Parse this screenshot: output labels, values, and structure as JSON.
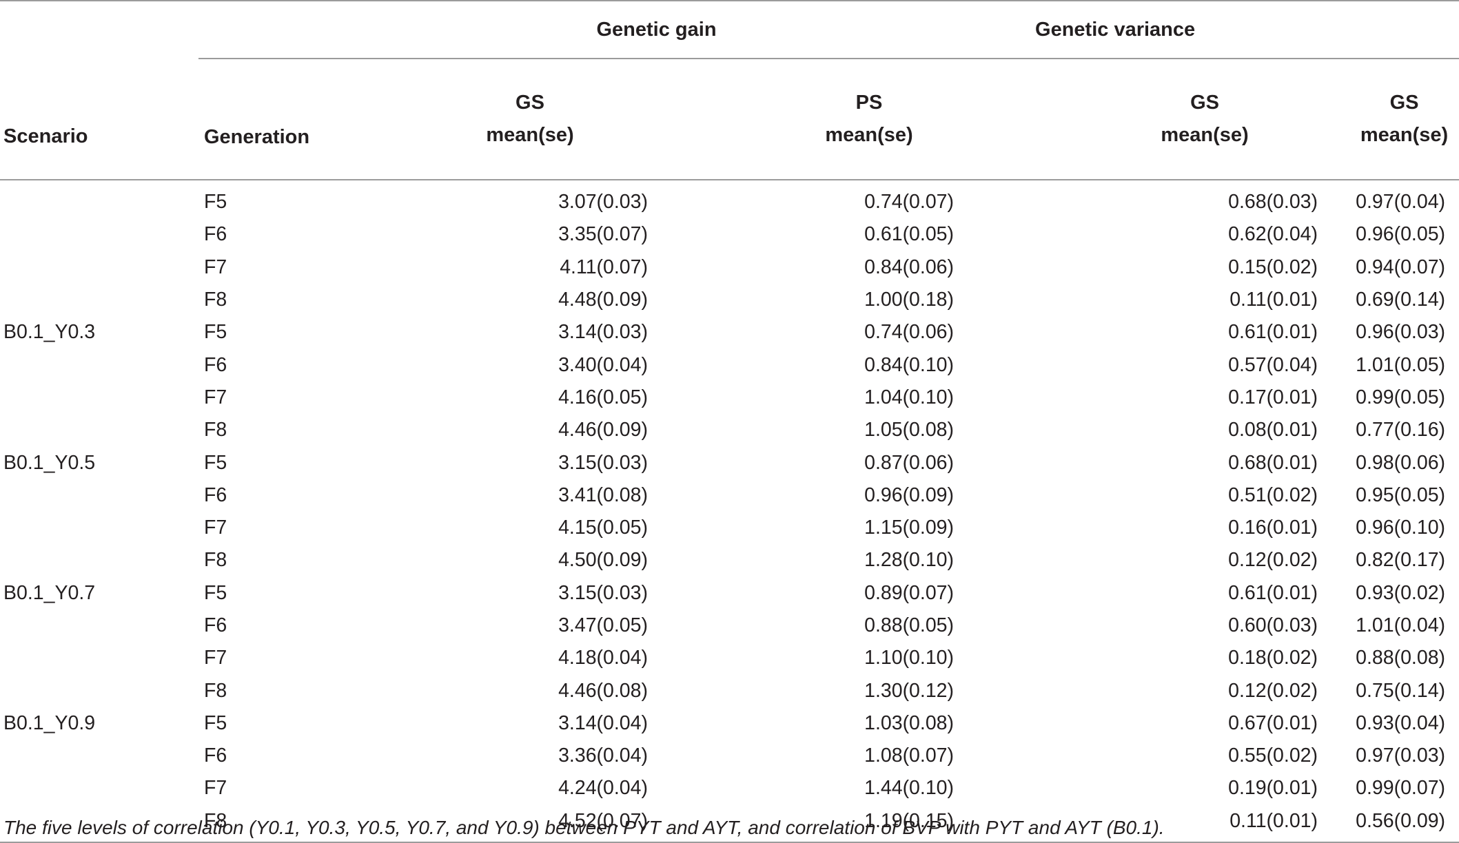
{
  "header": {
    "group_gain": "Genetic gain",
    "group_variance": "Genetic variance",
    "col_scenario": "Scenario",
    "col_generation": "Generation",
    "cols": [
      {
        "top": "GS",
        "bottom": "mean(se)"
      },
      {
        "top": "PS",
        "bottom": "mean(se)"
      },
      {
        "top": "GS",
        "bottom": "mean(se)"
      },
      {
        "top": "GS",
        "bottom": "mean(se)"
      }
    ]
  },
  "rows": [
    {
      "scenario": "",
      "gen": "F5",
      "v": [
        "3.07(0.03)",
        "0.74(0.07)",
        "0.68(0.03)",
        "0.97(0.04)"
      ]
    },
    {
      "scenario": "",
      "gen": "F6",
      "v": [
        "3.35(0.07)",
        "0.61(0.05)",
        "0.62(0.04)",
        "0.96(0.05)"
      ]
    },
    {
      "scenario": "",
      "gen": "F7",
      "v": [
        "4.11(0.07)",
        "0.84(0.06)",
        "0.15(0.02)",
        "0.94(0.07)"
      ]
    },
    {
      "scenario": "",
      "gen": "F8",
      "v": [
        "4.48(0.09)",
        "1.00(0.18)",
        "0.11(0.01)",
        "0.69(0.14)"
      ]
    },
    {
      "scenario": "B0.1_Y0.3",
      "gen": "F5",
      "v": [
        "3.14(0.03)",
        "0.74(0.06)",
        "0.61(0.01)",
        "0.96(0.03)"
      ]
    },
    {
      "scenario": "",
      "gen": "F6",
      "v": [
        "3.40(0.04)",
        "0.84(0.10)",
        "0.57(0.04)",
        "1.01(0.05)"
      ]
    },
    {
      "scenario": "",
      "gen": "F7",
      "v": [
        "4.16(0.05)",
        "1.04(0.10)",
        "0.17(0.01)",
        "0.99(0.05)"
      ]
    },
    {
      "scenario": "",
      "gen": "F8",
      "v": [
        "4.46(0.09)",
        "1.05(0.08)",
        "0.08(0.01)",
        "0.77(0.16)"
      ]
    },
    {
      "scenario": "B0.1_Y0.5",
      "gen": "F5",
      "v": [
        "3.15(0.03)",
        "0.87(0.06)",
        "0.68(0.01)",
        "0.98(0.06)"
      ]
    },
    {
      "scenario": "",
      "gen": "F6",
      "v": [
        "3.41(0.08)",
        "0.96(0.09)",
        "0.51(0.02)",
        "0.95(0.05)"
      ]
    },
    {
      "scenario": "",
      "gen": "F7",
      "v": [
        "4.15(0.05)",
        "1.15(0.09)",
        "0.16(0.01)",
        "0.96(0.10)"
      ]
    },
    {
      "scenario": "",
      "gen": "F8",
      "v": [
        "4.50(0.09)",
        "1.28(0.10)",
        "0.12(0.02)",
        "0.82(0.17)"
      ]
    },
    {
      "scenario": "B0.1_Y0.7",
      "gen": "F5",
      "v": [
        "3.15(0.03)",
        "0.89(0.07)",
        "0.61(0.01)",
        "0.93(0.02)"
      ]
    },
    {
      "scenario": "",
      "gen": "F6",
      "v": [
        "3.47(0.05)",
        "0.88(0.05)",
        "0.60(0.03)",
        "1.01(0.04)"
      ]
    },
    {
      "scenario": "",
      "gen": "F7",
      "v": [
        "4.18(0.04)",
        "1.10(0.10)",
        "0.18(0.02)",
        "0.88(0.08)"
      ]
    },
    {
      "scenario": "",
      "gen": "F8",
      "v": [
        "4.46(0.08)",
        "1.30(0.12)",
        "0.12(0.02)",
        "0.75(0.14)"
      ]
    },
    {
      "scenario": "B0.1_Y0.9",
      "gen": "F5",
      "v": [
        "3.14(0.04)",
        "1.03(0.08)",
        "0.67(0.01)",
        "0.93(0.04)"
      ]
    },
    {
      "scenario": "",
      "gen": "F6",
      "v": [
        "3.36(0.04)",
        "1.08(0.07)",
        "0.55(0.02)",
        "0.97(0.03)"
      ]
    },
    {
      "scenario": "",
      "gen": "F7",
      "v": [
        "4.24(0.04)",
        "1.44(0.10)",
        "0.19(0.01)",
        "0.99(0.07)"
      ]
    },
    {
      "scenario": "",
      "gen": "F8",
      "v": [
        "4.52(0.07)",
        "1.19(0.15)",
        "0.11(0.01)",
        "0.56(0.09)"
      ]
    }
  ],
  "footnote": "The five levels of correlation (Y0.1, Y0.3, Y0.5, Y0.7, and Y0.9) between PYT and AYT, and correlation of BVP with PYT and AYT (B0.1)."
}
